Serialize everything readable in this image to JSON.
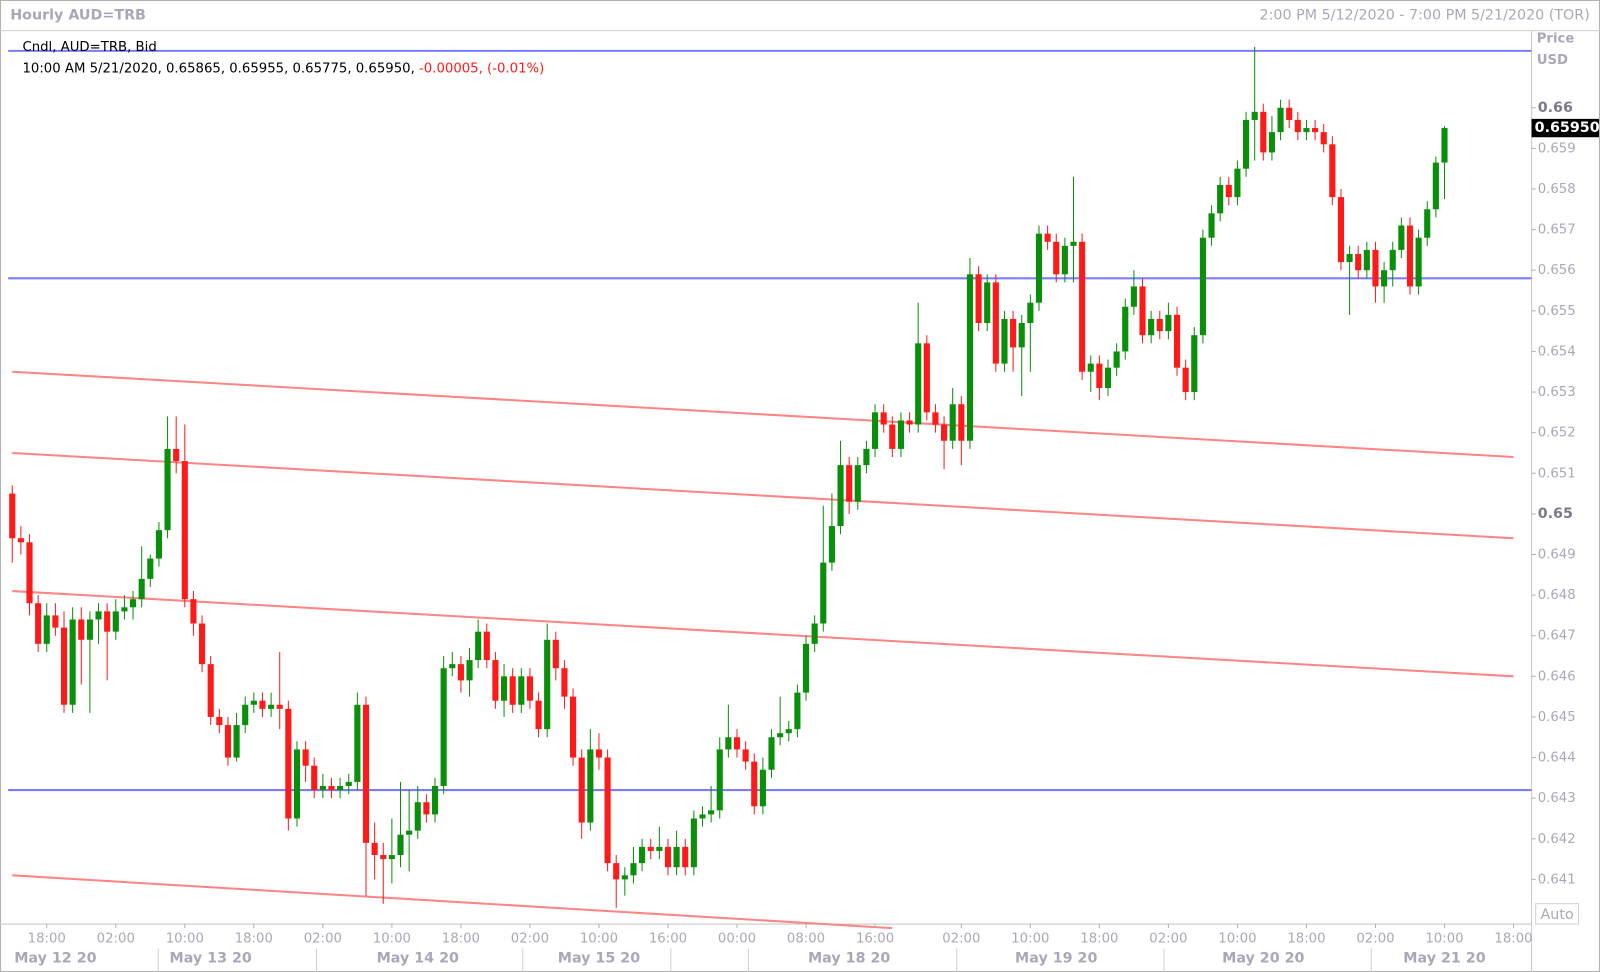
{
  "chart_data": {
    "type": "candlestick",
    "title": "Hourly AUD=TRB",
    "range_label": "2:00 PM 5/12/2020 - 7:00 PM 5/21/2020 (TOR)",
    "legend": "Cndl, AUD=TRB, Bid",
    "info": "10:00 AM 5/21/2020, 0.65865, 0.65955, 0.65775, 0.65950,",
    "change": "-0.00005, (-0.01%)",
    "axis_title": "Price",
    "axis_unit": "USD",
    "auto_label": "Auto",
    "up_color": "#0a8f0a",
    "down_color": "#ff1a1a",
    "hline_color": "#7b7bff",
    "trend_color": "#ff8484",
    "ylim": [
      0.6399,
      0.6619
    ],
    "yticks": [
      0.641,
      0.642,
      0.643,
      0.644,
      0.645,
      0.646,
      0.647,
      0.648,
      0.649,
      0.65,
      0.651,
      0.652,
      0.653,
      0.654,
      0.655,
      0.656,
      0.657,
      0.658,
      0.659,
      0.66
    ],
    "last_price": {
      "value": 0.6595,
      "label": "0.65950"
    },
    "hlines": [
      0.6614,
      0.6558,
      0.6432
    ],
    "trendlines": [
      [
        0,
        0.6535,
        174,
        0.6514
      ],
      [
        0,
        0.6515,
        174,
        0.6494
      ],
      [
        0,
        0.6481,
        174,
        0.646
      ],
      [
        0,
        0.6411,
        102,
        0.6398
      ]
    ],
    "categories": [
      null,
      null,
      null,
      null,
      "18:00",
      null,
      null,
      null,
      null,
      null,
      null,
      null,
      "02:00",
      null,
      null,
      null,
      null,
      null,
      null,
      null,
      "10:00",
      null,
      null,
      null,
      null,
      null,
      null,
      null,
      "18:00",
      null,
      null,
      null,
      null,
      null,
      null,
      null,
      "02:00",
      null,
      null,
      null,
      null,
      null,
      null,
      null,
      "10:00",
      null,
      null,
      null,
      null,
      null,
      null,
      null,
      "18:00",
      null,
      null,
      null,
      null,
      null,
      null,
      null,
      "02:00",
      null,
      null,
      null,
      null,
      null,
      null,
      null,
      "10:00",
      null,
      null,
      null,
      null,
      null,
      null,
      null,
      "16:00",
      null,
      null,
      null,
      null,
      null,
      null,
      null,
      "00:00",
      null,
      null,
      null,
      null,
      null,
      null,
      null,
      "08:00",
      null,
      null,
      null,
      null,
      null,
      null,
      null,
      "16:00",
      null,
      null,
      null,
      null,
      null,
      null,
      null,
      null,
      null,
      "02:00",
      null,
      null,
      null,
      null,
      null,
      null,
      null,
      "10:00",
      null,
      null,
      null,
      null,
      null,
      null,
      null,
      "18:00",
      null,
      null,
      null,
      null,
      null,
      null,
      null,
      "02:00",
      null,
      null,
      null,
      null,
      null,
      null,
      null,
      "10:00",
      null,
      null,
      null,
      null,
      null,
      null,
      null,
      "18:00",
      null,
      null,
      null,
      null,
      null,
      null,
      null,
      "02:00",
      null,
      null,
      null,
      null,
      null,
      null,
      null,
      "10:00",
      null,
      null,
      null,
      null,
      null,
      null,
      null,
      "18:00"
    ],
    "day_categories": [
      null,
      null,
      null,
      null,
      null,
      "May 12 20",
      null,
      null,
      null,
      null,
      null,
      null,
      null,
      null,
      null,
      null,
      null,
      null,
      null,
      null,
      null,
      null,
      null,
      "May 13 20",
      null,
      null,
      null,
      null,
      null,
      null,
      null,
      null,
      null,
      null,
      null,
      null,
      null,
      null,
      null,
      null,
      null,
      null,
      null,
      null,
      null,
      null,
      null,
      "May 14 20",
      null,
      null,
      null,
      null,
      null,
      null,
      null,
      null,
      null,
      null,
      null,
      null,
      null,
      null,
      null,
      null,
      null,
      null,
      null,
      null,
      "May 15 20",
      null,
      null,
      null,
      null,
      null,
      null,
      null,
      null,
      null,
      null,
      null,
      null,
      null,
      null,
      null,
      null,
      null,
      null,
      null,
      null,
      null,
      null,
      null,
      null,
      null,
      null,
      null,
      null,
      "May 18 20",
      null,
      null,
      null,
      null,
      null,
      null,
      null,
      null,
      null,
      null,
      null,
      null,
      null,
      null,
      null,
      null,
      null,
      null,
      null,
      null,
      null,
      null,
      null,
      "May 19 20",
      null,
      null,
      null,
      null,
      null,
      null,
      null,
      null,
      null,
      null,
      null,
      null,
      null,
      null,
      null,
      null,
      null,
      null,
      null,
      null,
      null,
      null,
      null,
      "May 20 20",
      null,
      null,
      null,
      null,
      null,
      null,
      null,
      null,
      null,
      null,
      null,
      null,
      null,
      null,
      null,
      null,
      null,
      null,
      null,
      null,
      "May 21 20",
      null,
      null,
      null,
      null,
      null,
      null,
      null,
      null
    ],
    "ohlc": [
      [
        0.6505,
        0.6507,
        0.6488,
        0.6494
      ],
      [
        0.6494,
        0.6497,
        0.649,
        0.6493
      ],
      [
        0.6493,
        0.6495,
        0.6475,
        0.6478
      ],
      [
        0.6478,
        0.648,
        0.6466,
        0.6468
      ],
      [
        0.6468,
        0.6478,
        0.6466,
        0.6475
      ],
      [
        0.6475,
        0.6478,
        0.647,
        0.6472
      ],
      [
        0.6472,
        0.6476,
        0.6451,
        0.6453
      ],
      [
        0.6453,
        0.6477,
        0.6451,
        0.6474
      ],
      [
        0.6474,
        0.6477,
        0.6458,
        0.6469
      ],
      [
        0.6469,
        0.6476,
        0.6451,
        0.6474
      ],
      [
        0.6474,
        0.6478,
        0.6468,
        0.6476
      ],
      [
        0.6476,
        0.6478,
        0.6459,
        0.6471
      ],
      [
        0.6471,
        0.6479,
        0.6469,
        0.6476
      ],
      [
        0.6476,
        0.648,
        0.6474,
        0.6477
      ],
      [
        0.6477,
        0.6481,
        0.6474,
        0.6479
      ],
      [
        0.6479,
        0.6492,
        0.6477,
        0.6484
      ],
      [
        0.6484,
        0.649,
        0.6482,
        0.6489
      ],
      [
        0.6489,
        0.6498,
        0.6487,
        0.6496
      ],
      [
        0.6496,
        0.6524,
        0.6494,
        0.6516
      ],
      [
        0.6516,
        0.6524,
        0.651,
        0.6513
      ],
      [
        0.6513,
        0.6522,
        0.6477,
        0.6479
      ],
      [
        0.6479,
        0.6481,
        0.647,
        0.6473
      ],
      [
        0.6473,
        0.6475,
        0.6461,
        0.6463
      ],
      [
        0.6463,
        0.6465,
        0.6448,
        0.645
      ],
      [
        0.645,
        0.6452,
        0.6446,
        0.6448
      ],
      [
        0.6448,
        0.645,
        0.6438,
        0.644
      ],
      [
        0.644,
        0.6451,
        0.6439,
        0.6448
      ],
      [
        0.6448,
        0.6455,
        0.6446,
        0.6453
      ],
      [
        0.6453,
        0.6456,
        0.6451,
        0.6454
      ],
      [
        0.6454,
        0.6456,
        0.645,
        0.6452
      ],
      [
        0.6452,
        0.6456,
        0.645,
        0.6453
      ],
      [
        0.6453,
        0.6466,
        0.6447,
        0.6452
      ],
      [
        0.6452,
        0.6454,
        0.6422,
        0.6425
      ],
      [
        0.6425,
        0.6444,
        0.6423,
        0.6442
      ],
      [
        0.6442,
        0.6444,
        0.6434,
        0.6438
      ],
      [
        0.6438,
        0.644,
        0.643,
        0.6432
      ],
      [
        0.6432,
        0.6436,
        0.643,
        0.6433
      ],
      [
        0.6433,
        0.6435,
        0.643,
        0.6432
      ],
      [
        0.6432,
        0.6435,
        0.643,
        0.6433
      ],
      [
        0.6433,
        0.6436,
        0.6431,
        0.6434
      ],
      [
        0.6434,
        0.6456,
        0.6432,
        0.6453
      ],
      [
        0.6453,
        0.6455,
        0.6406,
        0.6419
      ],
      [
        0.6419,
        0.6424,
        0.641,
        0.6416
      ],
      [
        0.6416,
        0.6419,
        0.6404,
        0.6415
      ],
      [
        0.6415,
        0.6425,
        0.6409,
        0.6416
      ],
      [
        0.6416,
        0.6434,
        0.6413,
        0.6421
      ],
      [
        0.6421,
        0.6432,
        0.6412,
        0.6422
      ],
      [
        0.6422,
        0.6433,
        0.642,
        0.6429
      ],
      [
        0.6429,
        0.6431,
        0.6424,
        0.6426
      ],
      [
        0.6426,
        0.6435,
        0.6424,
        0.6433
      ],
      [
        0.6433,
        0.6465,
        0.6431,
        0.6462
      ],
      [
        0.6462,
        0.6466,
        0.646,
        0.6463
      ],
      [
        0.6463,
        0.6465,
        0.6456,
        0.6459
      ],
      [
        0.6459,
        0.6467,
        0.6455,
        0.6464
      ],
      [
        0.6464,
        0.6474,
        0.6462,
        0.6471
      ],
      [
        0.6471,
        0.6473,
        0.6462,
        0.6464
      ],
      [
        0.6464,
        0.6466,
        0.6452,
        0.6454
      ],
      [
        0.6454,
        0.6463,
        0.645,
        0.646
      ],
      [
        0.646,
        0.6462,
        0.6451,
        0.6453
      ],
      [
        0.6453,
        0.6462,
        0.6451,
        0.646
      ],
      [
        0.646,
        0.6462,
        0.6452,
        0.6454
      ],
      [
        0.6454,
        0.6456,
        0.6445,
        0.6447
      ],
      [
        0.6447,
        0.6473,
        0.6445,
        0.6469
      ],
      [
        0.6469,
        0.6471,
        0.6459,
        0.6462
      ],
      [
        0.6462,
        0.6464,
        0.6452,
        0.6455
      ],
      [
        0.6455,
        0.6457,
        0.6438,
        0.644
      ],
      [
        0.644,
        0.6442,
        0.642,
        0.6424
      ],
      [
        0.6424,
        0.6447,
        0.6422,
        0.6442
      ],
      [
        0.6442,
        0.6446,
        0.6437,
        0.644
      ],
      [
        0.644,
        0.6442,
        0.6412,
        0.6414
      ],
      [
        0.6414,
        0.6416,
        0.6403,
        0.641
      ],
      [
        0.641,
        0.6413,
        0.6406,
        0.6411
      ],
      [
        0.6411,
        0.6418,
        0.6409,
        0.6414
      ],
      [
        0.6414,
        0.642,
        0.6412,
        0.6418
      ],
      [
        0.6418,
        0.642,
        0.6415,
        0.6417
      ],
      [
        0.6417,
        0.6423,
        0.6415,
        0.6418
      ],
      [
        0.6418,
        0.642,
        0.6411,
        0.6413
      ],
      [
        0.6413,
        0.6422,
        0.6411,
        0.6418
      ],
      [
        0.6418,
        0.642,
        0.6411,
        0.6413
      ],
      [
        0.6413,
        0.6427,
        0.6411,
        0.6425
      ],
      [
        0.6425,
        0.6428,
        0.6423,
        0.6426
      ],
      [
        0.6426,
        0.6433,
        0.6424,
        0.6427
      ],
      [
        0.6427,
        0.6445,
        0.6425,
        0.6442
      ],
      [
        0.6442,
        0.6453,
        0.644,
        0.6445
      ],
      [
        0.6445,
        0.6447,
        0.644,
        0.6442
      ],
      [
        0.6442,
        0.6444,
        0.6437,
        0.6439
      ],
      [
        0.6439,
        0.6441,
        0.6426,
        0.6428
      ],
      [
        0.6428,
        0.644,
        0.6426,
        0.6437
      ],
      [
        0.6437,
        0.6447,
        0.6435,
        0.6445
      ],
      [
        0.6445,
        0.6455,
        0.6443,
        0.6446
      ],
      [
        0.6446,
        0.6449,
        0.6444,
        0.6447
      ],
      [
        0.6447,
        0.6458,
        0.6445,
        0.6456
      ],
      [
        0.6456,
        0.647,
        0.6454,
        0.6468
      ],
      [
        0.6468,
        0.6475,
        0.6466,
        0.6473
      ],
      [
        0.6473,
        0.6502,
        0.6471,
        0.6488
      ],
      [
        0.6488,
        0.6505,
        0.6486,
        0.6497
      ],
      [
        0.6497,
        0.6518,
        0.6495,
        0.6512
      ],
      [
        0.6512,
        0.6514,
        0.65,
        0.6503
      ],
      [
        0.6503,
        0.6514,
        0.6501,
        0.6512
      ],
      [
        0.6512,
        0.6518,
        0.651,
        0.6516
      ],
      [
        0.6516,
        0.6527,
        0.6514,
        0.6525
      ],
      [
        0.6525,
        0.6527,
        0.652,
        0.6522
      ],
      [
        0.6522,
        0.6524,
        0.6514,
        0.6516
      ],
      [
        0.6516,
        0.6525,
        0.6514,
        0.6523
      ],
      [
        0.6523,
        0.6525,
        0.652,
        0.6522
      ],
      [
        0.6522,
        0.6552,
        0.652,
        0.6542
      ],
      [
        0.6542,
        0.6544,
        0.6523,
        0.6525
      ],
      [
        0.6525,
        0.6527,
        0.652,
        0.6522
      ],
      [
        0.6522,
        0.6524,
        0.6511,
        0.6518
      ],
      [
        0.6518,
        0.6531,
        0.6516,
        0.6527
      ],
      [
        0.6527,
        0.6529,
        0.6512,
        0.6518
      ],
      [
        0.6518,
        0.6563,
        0.6516,
        0.6559
      ],
      [
        0.6559,
        0.6561,
        0.6545,
        0.6547
      ],
      [
        0.6547,
        0.6559,
        0.6545,
        0.6557
      ],
      [
        0.6557,
        0.6559,
        0.6535,
        0.6537
      ],
      [
        0.6537,
        0.655,
        0.6535,
        0.6548
      ],
      [
        0.6548,
        0.655,
        0.6535,
        0.6541
      ],
      [
        0.6541,
        0.6549,
        0.6529,
        0.6547
      ],
      [
        0.6547,
        0.6554,
        0.6535,
        0.6552
      ],
      [
        0.6552,
        0.6571,
        0.655,
        0.6569
      ],
      [
        0.6569,
        0.6571,
        0.6565,
        0.6567
      ],
      [
        0.6567,
        0.6569,
        0.6557,
        0.6559
      ],
      [
        0.6559,
        0.6568,
        0.6557,
        0.6566
      ],
      [
        0.6566,
        0.6583,
        0.6557,
        0.6567
      ],
      [
        0.6567,
        0.6569,
        0.6533,
        0.6535
      ],
      [
        0.6535,
        0.6539,
        0.653,
        0.6537
      ],
      [
        0.6537,
        0.6539,
        0.6528,
        0.6531
      ],
      [
        0.6531,
        0.6538,
        0.6529,
        0.6536
      ],
      [
        0.6536,
        0.6542,
        0.6534,
        0.654
      ],
      [
        0.654,
        0.6553,
        0.6538,
        0.6551
      ],
      [
        0.6551,
        0.656,
        0.6549,
        0.6556
      ],
      [
        0.6556,
        0.6558,
        0.6542,
        0.6544
      ],
      [
        0.6544,
        0.655,
        0.6542,
        0.6548
      ],
      [
        0.6548,
        0.655,
        0.6543,
        0.6545
      ],
      [
        0.6545,
        0.6552,
        0.6543,
        0.6549
      ],
      [
        0.6549,
        0.6551,
        0.6534,
        0.6536
      ],
      [
        0.6536,
        0.6538,
        0.6528,
        0.653
      ],
      [
        0.653,
        0.6546,
        0.6528,
        0.6544
      ],
      [
        0.6544,
        0.657,
        0.6542,
        0.6568
      ],
      [
        0.6568,
        0.6576,
        0.6566,
        0.6574
      ],
      [
        0.6574,
        0.6583,
        0.6572,
        0.6581
      ],
      [
        0.6581,
        0.6583,
        0.6576,
        0.6578
      ],
      [
        0.6578,
        0.6587,
        0.6576,
        0.6585
      ],
      [
        0.6585,
        0.6599,
        0.6583,
        0.6597
      ],
      [
        0.6597,
        0.6615,
        0.6587,
        0.6599
      ],
      [
        0.6599,
        0.6601,
        0.6587,
        0.6589
      ],
      [
        0.6589,
        0.6598,
        0.6587,
        0.6594
      ],
      [
        0.6594,
        0.6602,
        0.6592,
        0.66
      ],
      [
        0.66,
        0.6602,
        0.6595,
        0.6597
      ],
      [
        0.6597,
        0.6599,
        0.6592,
        0.6594
      ],
      [
        0.6594,
        0.6597,
        0.6592,
        0.6595
      ],
      [
        0.6595,
        0.6597,
        0.6592,
        0.6594
      ],
      [
        0.6594,
        0.6596,
        0.6589,
        0.6591
      ],
      [
        0.6591,
        0.6593,
        0.6576,
        0.6578
      ],
      [
        0.6578,
        0.658,
        0.656,
        0.6562
      ],
      [
        0.6562,
        0.6566,
        0.6549,
        0.6564
      ],
      [
        0.6564,
        0.6566,
        0.6558,
        0.656
      ],
      [
        0.656,
        0.6567,
        0.6558,
        0.6565
      ],
      [
        0.6565,
        0.6567,
        0.6552,
        0.6556
      ],
      [
        0.6556,
        0.6562,
        0.6552,
        0.656
      ],
      [
        0.656,
        0.6567,
        0.6556,
        0.6565
      ],
      [
        0.6565,
        0.6573,
        0.6563,
        0.6571
      ],
      [
        0.6571,
        0.6573,
        0.6554,
        0.6556
      ],
      [
        0.6556,
        0.657,
        0.6554,
        0.6568
      ],
      [
        0.6568,
        0.6577,
        0.6566,
        0.6575
      ],
      [
        0.6575,
        0.6588,
        0.6573,
        0.65865
      ],
      [
        0.65865,
        0.65955,
        0.65775,
        0.6595
      ],
      null,
      null,
      null,
      null,
      null,
      null,
      null,
      null
    ]
  }
}
